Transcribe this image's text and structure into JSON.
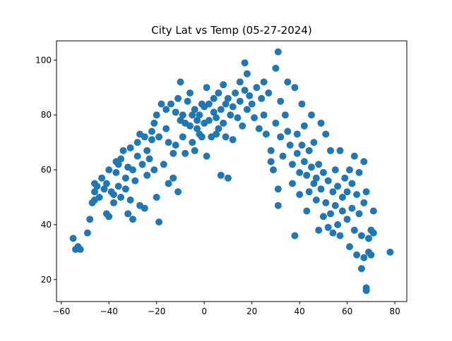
{
  "chart_data": {
    "type": "scatter",
    "title": "City Lat vs Temp (05-27-2024)",
    "xlabel": "",
    "ylabel": "",
    "xlim": [
      -62,
      85
    ],
    "ylim": [
      12,
      107
    ],
    "xticks": [
      -60,
      -40,
      -20,
      0,
      20,
      40,
      60,
      80
    ],
    "yticks": [
      20,
      40,
      60,
      80,
      100
    ],
    "grid": false,
    "marker_color": "#1f77b4",
    "series": [
      {
        "points": [
          [
            -55,
            35
          ],
          [
            -54,
            31
          ],
          [
            -53,
            32
          ],
          [
            -52,
            31
          ],
          [
            -49,
            37
          ],
          [
            -48,
            42
          ],
          [
            -47,
            48
          ],
          [
            -46,
            49
          ],
          [
            -46,
            55
          ],
          [
            -46,
            52
          ],
          [
            -45,
            54
          ],
          [
            -44,
            50
          ],
          [
            -43,
            57
          ],
          [
            -42,
            53
          ],
          [
            -41,
            55
          ],
          [
            -41,
            44
          ],
          [
            -40,
            43
          ],
          [
            -40,
            60
          ],
          [
            -39,
            52
          ],
          [
            -38,
            51
          ],
          [
            -38,
            48
          ],
          [
            -37,
            63
          ],
          [
            -37,
            59
          ],
          [
            -36,
            62
          ],
          [
            -36,
            54
          ],
          [
            -35,
            50
          ],
          [
            -35,
            64
          ],
          [
            -34,
            67
          ],
          [
            -33,
            57
          ],
          [
            -33,
            53
          ],
          [
            -32,
            61
          ],
          [
            -32,
            44
          ],
          [
            -31,
            49
          ],
          [
            -31,
            68
          ],
          [
            -30,
            60
          ],
          [
            -30,
            42
          ],
          [
            -29,
            56
          ],
          [
            -28,
            65
          ],
          [
            -28,
            70
          ],
          [
            -27,
            73
          ],
          [
            -27,
            47
          ],
          [
            -26,
            62
          ],
          [
            -25,
            72
          ],
          [
            -25,
            46
          ],
          [
            -24,
            67
          ],
          [
            -24,
            58
          ],
          [
            -23,
            64
          ],
          [
            -22,
            71
          ],
          [
            -22,
            74
          ],
          [
            -21,
            60
          ],
          [
            -21,
            77
          ],
          [
            -20,
            80
          ],
          [
            -20,
            50
          ],
          [
            -19,
            72
          ],
          [
            -19,
            41
          ],
          [
            -18,
            84
          ],
          [
            -17,
            62
          ],
          [
            -16,
            75
          ],
          [
            -16,
            82
          ],
          [
            -15,
            70
          ],
          [
            -15,
            55
          ],
          [
            -14,
            84
          ],
          [
            -13,
            66
          ],
          [
            -13,
            57
          ],
          [
            -12,
            81
          ],
          [
            -12,
            69
          ],
          [
            -11,
            52
          ],
          [
            -11,
            86
          ],
          [
            -10,
            78
          ],
          [
            -10,
            92
          ],
          [
            -9,
            80
          ],
          [
            -9,
            72
          ],
          [
            -8,
            66
          ],
          [
            -8,
            77
          ],
          [
            -7,
            85
          ],
          [
            -6,
            88
          ],
          [
            -6,
            76
          ],
          [
            -5,
            70
          ],
          [
            -5,
            80
          ],
          [
            -4,
            67
          ],
          [
            -4,
            82
          ],
          [
            -3,
            78
          ],
          [
            -3,
            75
          ],
          [
            -2,
            73
          ],
          [
            -2,
            80
          ],
          [
            -1,
            84
          ],
          [
            -1,
            72
          ],
          [
            0,
            77
          ],
          [
            0,
            83
          ],
          [
            1,
            65
          ],
          [
            1,
            90
          ],
          [
            2,
            84
          ],
          [
            2,
            78
          ],
          [
            3,
            72
          ],
          [
            4,
            81
          ],
          [
            4,
            86
          ],
          [
            5,
            79
          ],
          [
            5,
            73
          ],
          [
            6,
            75
          ],
          [
            6,
            88
          ],
          [
            7,
            82
          ],
          [
            7,
            58
          ],
          [
            8,
            91
          ],
          [
            8,
            77
          ],
          [
            9,
            84
          ],
          [
            9,
            72
          ],
          [
            10,
            57
          ],
          [
            10,
            86
          ],
          [
            11,
            80
          ],
          [
            12,
            83
          ],
          [
            12,
            71
          ],
          [
            13,
            88
          ],
          [
            14,
            79
          ],
          [
            15,
            92
          ],
          [
            15,
            85
          ],
          [
            16,
            76
          ],
          [
            17,
            99
          ],
          [
            17,
            89
          ],
          [
            18,
            82
          ],
          [
            18,
            95
          ],
          [
            19,
            87
          ],
          [
            20,
            84
          ],
          [
            21,
            79
          ],
          [
            22,
            90
          ],
          [
            23,
            75
          ],
          [
            24,
            86
          ],
          [
            25,
            92
          ],
          [
            25,
            80
          ],
          [
            26,
            73
          ],
          [
            27,
            88
          ],
          [
            28,
            67
          ],
          [
            28,
            63
          ],
          [
            29,
            60
          ],
          [
            30,
            77
          ],
          [
            30,
            97
          ],
          [
            31,
            103
          ],
          [
            31,
            53
          ],
          [
            31,
            47
          ],
          [
            32,
            72
          ],
          [
            32,
            85
          ],
          [
            33,
            65
          ],
          [
            34,
            80
          ],
          [
            35,
            74
          ],
          [
            35,
            92
          ],
          [
            36,
            69
          ],
          [
            37,
            62
          ],
          [
            37,
            55
          ],
          [
            38,
            90
          ],
          [
            38,
            36
          ],
          [
            39,
            66
          ],
          [
            39,
            73
          ],
          [
            40,
            59
          ],
          [
            40,
            51
          ],
          [
            41,
            84
          ],
          [
            41,
            69
          ],
          [
            42,
            63
          ],
          [
            42,
            76
          ],
          [
            43,
            45
          ],
          [
            43,
            58
          ],
          [
            44,
            67
          ],
          [
            44,
            52
          ],
          [
            45,
            80
          ],
          [
            45,
            61
          ],
          [
            46,
            70
          ],
          [
            46,
            55
          ],
          [
            47,
            57
          ],
          [
            47,
            49
          ],
          [
            48,
            38
          ],
          [
            48,
            62
          ],
          [
            49,
            53
          ],
          [
            49,
            77
          ],
          [
            50,
            43
          ],
          [
            50,
            59
          ],
          [
            51,
            73
          ],
          [
            51,
            48
          ],
          [
            52,
            39
          ],
          [
            52,
            56
          ],
          [
            53,
            67
          ],
          [
            53,
            44
          ],
          [
            54,
            52
          ],
          [
            54,
            37
          ],
          [
            55,
            60
          ],
          [
            55,
            47
          ],
          [
            56,
            40
          ],
          [
            56,
            54
          ],
          [
            57,
            67
          ],
          [
            57,
            36
          ],
          [
            58,
            50
          ],
          [
            58,
            45
          ],
          [
            59,
            57
          ],
          [
            60,
            52
          ],
          [
            60,
            42
          ],
          [
            61,
            60
          ],
          [
            61,
            32
          ],
          [
            62,
            55
          ],
          [
            62,
            46
          ],
          [
            63,
            65
          ],
          [
            63,
            38
          ],
          [
            64,
            29
          ],
          [
            64,
            51
          ],
          [
            65,
            59
          ],
          [
            65,
            44
          ],
          [
            66,
            36
          ],
          [
            66,
            24
          ],
          [
            67,
            28
          ],
          [
            67,
            63
          ],
          [
            67,
            48
          ],
          [
            68,
            17
          ],
          [
            68,
            16
          ],
          [
            68,
            52
          ],
          [
            69,
            35
          ],
          [
            69,
            30
          ],
          [
            70,
            38
          ],
          [
            70,
            29
          ],
          [
            71,
            45
          ],
          [
            71,
            37
          ],
          [
            78,
            30
          ]
        ]
      }
    ]
  }
}
